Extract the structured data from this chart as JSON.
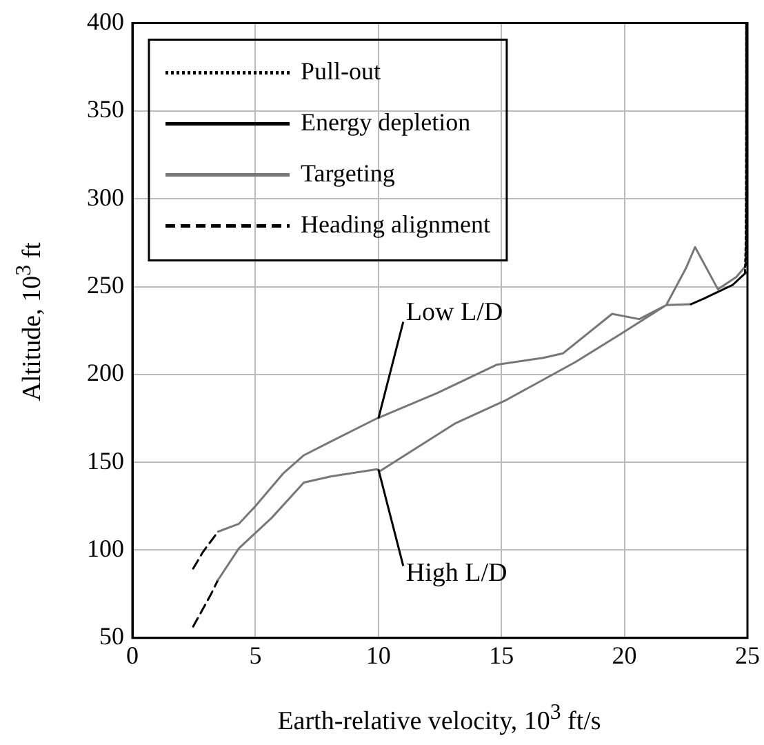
{
  "chart_data": {
    "type": "line",
    "xlabel": "Earth-relative velocity, 10$^{3}$ ft/s",
    "ylabel": "Altitude, 10$^{3}$ ft",
    "xlim": [
      0,
      25
    ],
    "xticks": [
      0,
      5,
      10,
      15,
      20,
      25
    ],
    "ylim": [
      50,
      400
    ],
    "yticks": [
      50,
      100,
      150,
      200,
      250,
      300,
      350,
      400
    ],
    "grid": true,
    "legend": "top left",
    "series": [
      {
        "name": "Pull-out",
        "color": "#000000",
        "line_style": "dotted",
        "x": [
          24.9,
          24.93,
          24.94,
          24.95,
          24.95,
          null,
          24.94,
          24.95,
          24.95,
          24.95,
          24.95
        ],
        "values": [
          258,
          275,
          300,
          350,
          400,
          null,
          262,
          278,
          300,
          350,
          400
        ]
      },
      {
        "name": "Energy depletion",
        "color": "#000000",
        "line_style": "solid",
        "x": [
          22.7,
          23.2,
          23.8,
          24.4,
          24.94
        ],
        "values": [
          240,
          243,
          247,
          251,
          258
        ]
      },
      {
        "name": "Targeting",
        "color": "#777777",
        "line_style": "solid",
        "x": [
          3.48,
          4.33,
          5.0,
          6.12,
          6.97,
          8.09,
          9.94,
          12.4,
          14.8,
          16.7,
          17.5,
          19.5,
          20.6,
          21.7,
          22.7,
          null,
          3.48,
          4.33,
          5.67,
          6.97,
          8.09,
          9.94,
          10.06,
          13.1,
          15.2,
          18.0,
          19.9,
          21.7,
          22.5,
          22.87,
          23.8,
          24.55,
          24.94
        ],
        "values": [
          110.5,
          115,
          125,
          143.5,
          154,
          162,
          175,
          189.5,
          205.5,
          209.5,
          212,
          234.5,
          231.5,
          239.5,
          240,
          null,
          83,
          101,
          118.5,
          138.5,
          142,
          146,
          145,
          172,
          185.5,
          207,
          223.5,
          239.5,
          260.5,
          272.5,
          248.5,
          255.5,
          262
        ]
      },
      {
        "name": "Heading alignment",
        "color": "#000000",
        "line_style": "dashed",
        "x": [
          2.47,
          2.87,
          3.48,
          null,
          2.47,
          3.2,
          3.48
        ],
        "values": [
          89.5,
          99,
          110.5,
          null,
          56.5,
          75,
          83
        ]
      }
    ],
    "annotations": [
      {
        "text": "Low L/D",
        "x": 10,
        "y": 175
      },
      {
        "text": "High L/D",
        "x": 10,
        "y": 146
      }
    ]
  }
}
